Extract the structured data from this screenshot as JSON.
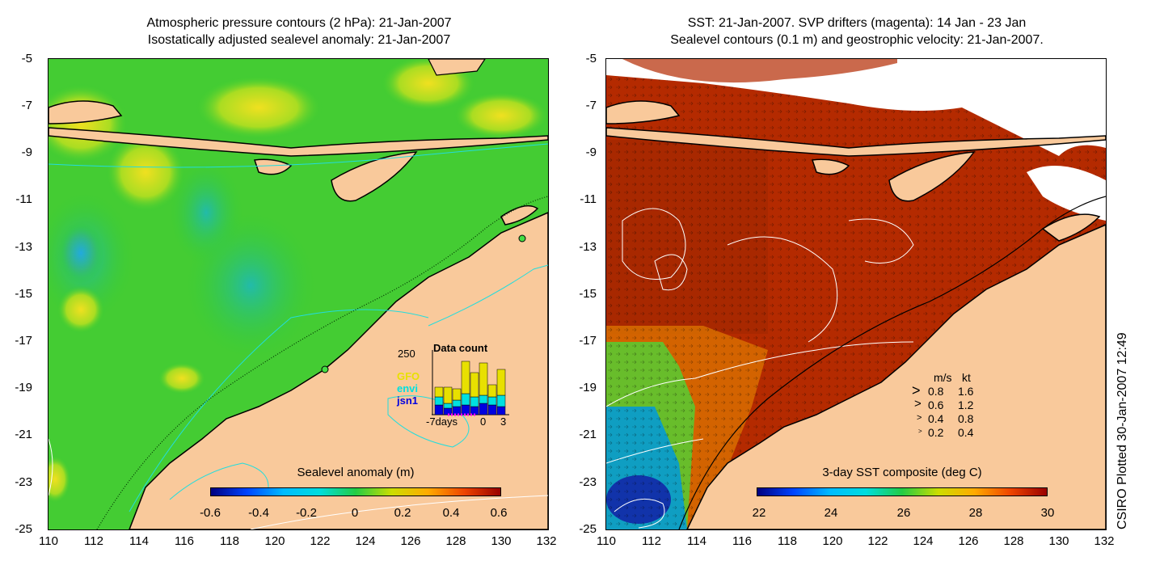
{
  "left_panel": {
    "title_line1": "Atmospheric pressure contours (2 hPa): 21-Jan-2007",
    "title_line2": "Isostatically adjusted sealevel anomaly: 21-Jan-2007",
    "y_ticks": [
      "-5",
      "-7",
      "-9",
      "-11",
      "-13",
      "-15",
      "-17",
      "-19",
      "-21",
      "-23",
      "-25"
    ],
    "x_ticks": [
      "110",
      "112",
      "114",
      "116",
      "118",
      "120",
      "122",
      "124",
      "126",
      "128",
      "130",
      "132"
    ],
    "colorbar": {
      "title": "Sealevel anomaly (m)",
      "labels": [
        "-0.6",
        "-0.4",
        "-0.2",
        "0",
        "0.2",
        "0.4",
        "0.6"
      ]
    },
    "data_count": {
      "title": "Data count",
      "y_max": "250",
      "satellites": [
        "GFO",
        "envi",
        "jsn1"
      ],
      "x_label_left": "-7days",
      "x_label_mid": "0",
      "x_label_right": "3",
      "colors": {
        "GFO": "#e8e000",
        "envi": "#00e0e0",
        "jsn1": "#0000e0"
      }
    }
  },
  "right_panel": {
    "title_line1": "SST: 21-Jan-2007. SVP drifters (magenta): 14 Jan - 23 Jan",
    "title_line2": "Sealevel contours (0.1 m) and geostrophic velocity: 21-Jan-2007.",
    "y_ticks": [
      "-5",
      "-7",
      "-9",
      "-11",
      "-13",
      "-15",
      "-17",
      "-19",
      "-21",
      "-23",
      "-25"
    ],
    "x_ticks": [
      "110",
      "112",
      "114",
      "116",
      "118",
      "120",
      "122",
      "124",
      "126",
      "128",
      "130",
      "132"
    ],
    "colorbar": {
      "title": "3-day SST composite (deg C)",
      "labels": [
        "22",
        "24",
        "26",
        "28",
        "30"
      ]
    },
    "velocity_legend": {
      "header_ms": "m/s",
      "header_kt": "kt",
      "rows": [
        {
          "ms": "0.8",
          "kt": "1.6"
        },
        {
          "ms": "0.6",
          "kt": "1.2"
        },
        {
          "ms": "0.4",
          "kt": "0.8"
        },
        {
          "ms": "0.2",
          "kt": "0.4"
        }
      ]
    }
  },
  "credit": "CSIRO Plotted 30-Jan-2007 12:49",
  "colors": {
    "land": "#f9c99b",
    "sla_green": "#33cc33",
    "sst_warm": "#b42a00",
    "coast": "#000000"
  }
}
